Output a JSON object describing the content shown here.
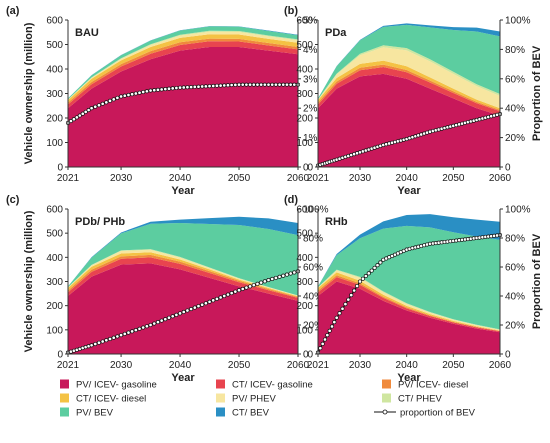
{
  "colors": {
    "pv_icev_gasoline": "#c8185a",
    "ct_icev_gasoline": "#e8444f",
    "pv_icev_diesel": "#f08a3c",
    "ct_icev_diesel": "#f4c244",
    "pv_phev": "#f7e6a0",
    "ct_phev": "#cfe6a0",
    "pv_bev": "#5ccda0",
    "ct_bev": "#2a8fc4"
  },
  "legend": [
    {
      "label": "PV/ ICEV- gasoline",
      "color_key": "pv_icev_gasoline"
    },
    {
      "label": "CT/ ICEV- gasoline",
      "color_key": "ct_icev_gasoline"
    },
    {
      "label": "PV/ ICEV- diesel",
      "color_key": "pv_icev_diesel"
    },
    {
      "label": "CT/ ICEV- diesel",
      "color_key": "ct_icev_diesel"
    },
    {
      "label": "PV/ PHEV",
      "color_key": "pv_phev"
    },
    {
      "label": "CT/ PHEV",
      "color_key": "ct_phev"
    },
    {
      "label": "PV/ BEV",
      "color_key": "pv_bev"
    },
    {
      "label": "CT/ BEV",
      "color_key": "ct_bev"
    },
    {
      "label": "proportion of BEV",
      "color_key": "line"
    }
  ],
  "chart_data": [
    {
      "type": "area",
      "panel": "(a)",
      "title": "BAU",
      "xlabel": "Year",
      "ylabel": "Vehicle ownership (million)",
      "y2label": "",
      "xlim": [
        2021,
        2060
      ],
      "ylim": [
        0,
        600
      ],
      "y2lim": [
        0,
        5
      ],
      "xticks": [
        "2021",
        "2030",
        "2040",
        "2050",
        "2060"
      ],
      "yticks": [
        "0",
        "100",
        "200",
        "300",
        "400",
        "500",
        "600"
      ],
      "y2ticks": [
        "0",
        "1%",
        "2%",
        "3%",
        "4%",
        "5%"
      ],
      "x": [
        2021,
        2025,
        2030,
        2035,
        2040,
        2045,
        2050,
        2055,
        2060
      ],
      "series": [
        {
          "name": "PV/ ICEV- gasoline",
          "color_key": "pv_icev_gasoline",
          "values": [
            240,
            320,
            390,
            440,
            475,
            490,
            490,
            475,
            460
          ]
        },
        {
          "name": "CT/ ICEV- gasoline",
          "color_key": "ct_icev_gasoline",
          "values": [
            15,
            18,
            20,
            22,
            23,
            23,
            22,
            21,
            20
          ]
        },
        {
          "name": "PV/ ICEV- diesel",
          "color_key": "pv_icev_diesel",
          "values": [
            8,
            9,
            10,
            11,
            11,
            11,
            11,
            10,
            10
          ]
        },
        {
          "name": "CT/ ICEV- diesel",
          "color_key": "ct_icev_diesel",
          "values": [
            10,
            13,
            15,
            17,
            18,
            18,
            18,
            17,
            17
          ]
        },
        {
          "name": "PV/ PHEV",
          "color_key": "pv_phev",
          "values": [
            2,
            4,
            6,
            8,
            9,
            10,
            10,
            10,
            10
          ]
        },
        {
          "name": "CT/ PHEV",
          "color_key": "ct_phev",
          "values": [
            1,
            2,
            3,
            3,
            4,
            4,
            4,
            4,
            4
          ]
        },
        {
          "name": "PV/ BEV",
          "color_key": "pv_bev",
          "values": [
            4,
            8,
            12,
            15,
            17,
            18,
            18,
            18,
            17
          ]
        },
        {
          "name": "CT/ BEV",
          "color_key": "ct_bev",
          "values": [
            0,
            1,
            1,
            1,
            1,
            1,
            1,
            2,
            2
          ]
        }
      ],
      "bev_share": {
        "name": "proportion of BEV",
        "values": [
          1.5,
          2.0,
          2.4,
          2.6,
          2.7,
          2.75,
          2.8,
          2.8,
          2.8
        ]
      }
    },
    {
      "type": "area",
      "panel": "(b)",
      "title": "PDa",
      "xlabel": "Year",
      "ylabel": "",
      "y2label": "Proportion of BEV",
      "xlim": [
        2021,
        2060
      ],
      "ylim": [
        0,
        600
      ],
      "y2lim": [
        0,
        100
      ],
      "xticks": [
        "2021",
        "2030",
        "2040",
        "2050",
        "2060"
      ],
      "yticks": [
        "0",
        "100",
        "200",
        "300",
        "400",
        "500",
        "600"
      ],
      "y2ticks": [
        "0",
        "20%",
        "40%",
        "60%",
        "80%",
        "100%"
      ],
      "x": [
        2021,
        2025,
        2030,
        2035,
        2040,
        2045,
        2050,
        2055,
        2060
      ],
      "series": [
        {
          "name": "PV/ ICEV- gasoline",
          "color_key": "pv_icev_gasoline",
          "values": [
            240,
            320,
            370,
            380,
            360,
            320,
            280,
            240,
            210
          ]
        },
        {
          "name": "CT/ ICEV- gasoline",
          "color_key": "ct_icev_gasoline",
          "values": [
            15,
            20,
            25,
            28,
            27,
            25,
            22,
            20,
            18
          ]
        },
        {
          "name": "PV/ ICEV- diesel",
          "color_key": "pv_icev_diesel",
          "values": [
            8,
            9,
            10,
            10,
            9,
            8,
            7,
            6,
            5
          ]
        },
        {
          "name": "CT/ ICEV- diesel",
          "color_key": "ct_icev_diesel",
          "values": [
            10,
            14,
            16,
            16,
            15,
            13,
            11,
            9,
            7
          ]
        },
        {
          "name": "PV/ PHEV",
          "color_key": "pv_phev",
          "values": [
            2,
            15,
            35,
            55,
            65,
            65,
            60,
            55,
            50
          ]
        },
        {
          "name": "CT/ PHEV",
          "color_key": "ct_phev",
          "values": [
            1,
            3,
            6,
            8,
            9,
            9,
            9,
            8,
            8
          ]
        },
        {
          "name": "PV/ BEV",
          "color_key": "pv_bev",
          "values": [
            4,
            30,
            55,
            75,
            95,
            130,
            170,
            215,
            235
          ]
        },
        {
          "name": "CT/ BEV",
          "color_key": "ct_bev",
          "values": [
            0,
            1,
            2,
            4,
            6,
            8,
            12,
            16,
            20
          ]
        }
      ],
      "bev_share": {
        "name": "proportion of BEV",
        "values": [
          1,
          5,
          10,
          15,
          19,
          24,
          28,
          32,
          36
        ]
      }
    },
    {
      "type": "area",
      "panel": "(c)",
      "title": "PDb/ PHb",
      "xlabel": "Year",
      "ylabel": "Vehicle ownership (million)",
      "y2label": "",
      "xlim": [
        2021,
        2060
      ],
      "ylim": [
        0,
        600
      ],
      "y2lim": [
        0,
        100
      ],
      "xticks": [
        "2021",
        "2030",
        "2040",
        "2050",
        "2060"
      ],
      "yticks": [
        "0",
        "100",
        "200",
        "300",
        "400",
        "500",
        "600"
      ],
      "y2ticks": [
        "0",
        "20%",
        "40%",
        "60%",
        "80%",
        "100%"
      ],
      "x": [
        2021,
        2025,
        2030,
        2035,
        2040,
        2045,
        2050,
        2055,
        2060
      ],
      "series": [
        {
          "name": "PV/ ICEV- gasoline",
          "color_key": "pv_icev_gasoline",
          "values": [
            240,
            320,
            370,
            375,
            350,
            315,
            280,
            250,
            220
          ]
        },
        {
          "name": "CT/ ICEV- gasoline",
          "color_key": "ct_icev_gasoline",
          "values": [
            15,
            20,
            24,
            25,
            23,
            20,
            17,
            14,
            12
          ]
        },
        {
          "name": "PV/ ICEV- diesel",
          "color_key": "pv_icev_diesel",
          "values": [
            8,
            9,
            10,
            10,
            9,
            8,
            6,
            5,
            4
          ]
        },
        {
          "name": "CT/ ICEV- diesel",
          "color_key": "ct_icev_diesel",
          "values": [
            10,
            12,
            12,
            11,
            9,
            7,
            5,
            4,
            3
          ]
        },
        {
          "name": "PV/ PHEV",
          "color_key": "pv_phev",
          "values": [
            2,
            6,
            10,
            10,
            8,
            6,
            4,
            3,
            2
          ]
        },
        {
          "name": "CT/ PHEV",
          "color_key": "ct_phev",
          "values": [
            1,
            2,
            3,
            3,
            3,
            2,
            2,
            1,
            1
          ]
        },
        {
          "name": "PV/ BEV",
          "color_key": "pv_bev",
          "values": [
            4,
            30,
            70,
            105,
            140,
            180,
            220,
            240,
            250
          ]
        },
        {
          "name": "CT/ BEV",
          "color_key": "ct_bev",
          "values": [
            0,
            2,
            4,
            8,
            14,
            24,
            34,
            44,
            50
          ]
        }
      ],
      "bev_share": {
        "name": "proportion of BEV",
        "values": [
          1,
          6,
          13,
          20,
          28,
          36,
          44,
          51,
          57
        ]
      }
    },
    {
      "type": "area",
      "panel": "(d)",
      "title": "RHb",
      "xlabel": "Year",
      "ylabel": "",
      "y2label": "Proportion of BEV",
      "xlim": [
        2021,
        2060
      ],
      "ylim": [
        0,
        600
      ],
      "y2lim": [
        0,
        100
      ],
      "xticks": [
        "2021",
        "2030",
        "2040",
        "2050",
        "2060"
      ],
      "yticks": [
        "0",
        "100",
        "200",
        "300",
        "400",
        "500",
        "600"
      ],
      "y2ticks": [
        "0",
        "20%",
        "40%",
        "60%",
        "80%",
        "100%"
      ],
      "x": [
        2021,
        2025,
        2030,
        2035,
        2040,
        2045,
        2050,
        2055,
        2060
      ],
      "series": [
        {
          "name": "PV/ ICEV- gasoline",
          "color_key": "pv_icev_gasoline",
          "values": [
            240,
            300,
            270,
            220,
            180,
            150,
            125,
            105,
            90
          ]
        },
        {
          "name": "CT/ ICEV- gasoline",
          "color_key": "ct_icev_gasoline",
          "values": [
            15,
            18,
            16,
            12,
            9,
            7,
            6,
            5,
            4
          ]
        },
        {
          "name": "PV/ ICEV- diesel",
          "color_key": "pv_icev_diesel",
          "values": [
            8,
            8,
            7,
            5,
            4,
            3,
            2,
            2,
            1
          ]
        },
        {
          "name": "CT/ ICEV- diesel",
          "color_key": "ct_icev_diesel",
          "values": [
            10,
            12,
            10,
            8,
            6,
            5,
            4,
            3,
            2
          ]
        },
        {
          "name": "PV/ PHEV",
          "color_key": "pv_phev",
          "values": [
            2,
            8,
            12,
            10,
            8,
            6,
            5,
            4,
            3
          ]
        },
        {
          "name": "CT/ PHEV",
          "color_key": "ct_phev",
          "values": [
            1,
            3,
            4,
            4,
            3,
            3,
            2,
            2,
            2
          ]
        },
        {
          "name": "PV/ BEV",
          "color_key": "pv_bev",
          "values": [
            4,
            60,
            160,
            260,
            320,
            350,
            360,
            365,
            370
          ]
        },
        {
          "name": "CT/ BEV",
          "color_key": "ct_bev",
          "values": [
            0,
            5,
            15,
            30,
            45,
            55,
            62,
            70,
            75
          ]
        }
      ],
      "bev_share": {
        "name": "proportion of BEV",
        "values": [
          1,
          25,
          50,
          65,
          72,
          76,
          78,
          80,
          82
        ]
      }
    }
  ]
}
